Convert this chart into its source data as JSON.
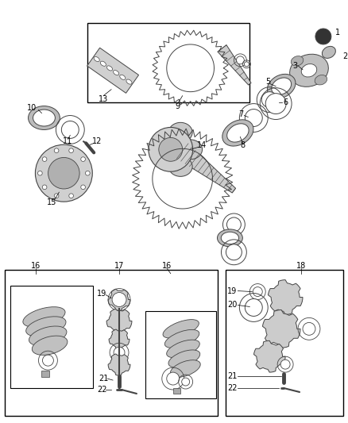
{
  "bg": "#ffffff",
  "lc": "#000000",
  "pc": "#444444",
  "gc": "#666666",
  "title_font": 7,
  "label_font": 7,
  "fig_w": 4.38,
  "fig_h": 5.33,
  "dpi": 100
}
